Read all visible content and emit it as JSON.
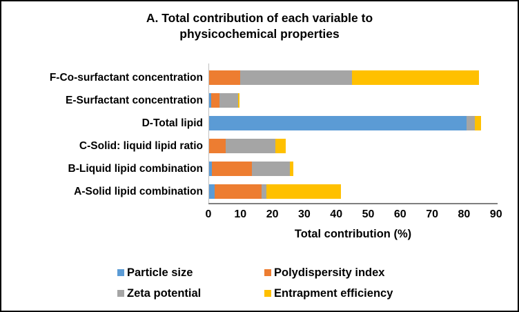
{
  "title": {
    "line1": "A. Total contribution of each variable to",
    "line2": "physicochemical properties"
  },
  "chart_data": {
    "type": "bar",
    "orientation": "horizontal-stacked",
    "title": "A. Total contribution of each variable to physicochemical properties",
    "categories": [
      "F-Co-surfactant concentration",
      "E-Surfactant concentration",
      "D-Total lipid",
      "C-Solid: liquid lipid ratio",
      "B-Liquid lipid combination",
      "A-Solid lipid combination"
    ],
    "series": [
      {
        "name": "Particle size",
        "color": "#5B9BD5",
        "values": [
          0,
          0.6,
          80.6,
          0,
          0.8,
          1.7
        ]
      },
      {
        "name": "Polydispersity index",
        "color": "#ED7D31",
        "values": [
          9.7,
          2.6,
          0,
          5.1,
          12.6,
          14.8
        ]
      },
      {
        "name": "Zeta potential",
        "color": "#A5A5A5",
        "values": [
          35.0,
          5.9,
          2.5,
          15.7,
          11.9,
          1.4
        ]
      },
      {
        "name": "Entrapment efficiency",
        "color": "#FFC000",
        "values": [
          39.7,
          0.5,
          2.0,
          3.2,
          1.0,
          23.4
        ]
      }
    ],
    "xlabel": "Total contribution (%)",
    "xlim": [
      0,
      90
    ],
    "xticks": [
      0,
      10,
      20,
      30,
      40,
      50,
      60,
      70,
      80,
      90
    ],
    "grid": false,
    "legend_position": "bottom"
  }
}
